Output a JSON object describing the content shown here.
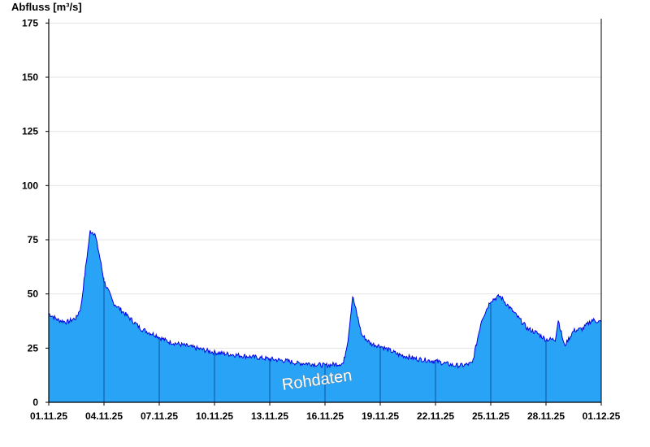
{
  "chart_data": {
    "type": "area",
    "ylabel": "Abfluss [m³/s]",
    "ylim": [
      0,
      177
    ],
    "yticks": [
      0,
      25,
      50,
      75,
      100,
      125,
      150,
      175
    ],
    "x_range": [
      "01.11.25",
      "01.12.25"
    ],
    "xticks": [
      "01.11.25",
      "04.11.25",
      "07.11.25",
      "10.11.25",
      "13.11.25",
      "16.11.25",
      "19.11.25",
      "22.11.25",
      "25.11.25",
      "28.11.25",
      "01.12.25"
    ],
    "watermark": "Rohdaten",
    "grid": true,
    "series": [
      {
        "fill_color": "#29a3f5",
        "line_color": "#0000e6",
        "x": [
          "01.11.25 00:00",
          "01.11.25 12:00",
          "02.11.25 00:00",
          "02.11.25 12:00",
          "02.11.25 18:00",
          "03.11.25 00:00",
          "03.11.25 06:00",
          "03.11.25 12:00",
          "03.11.25 18:00",
          "04.11.25 00:00",
          "04.11.25 12:00",
          "05.11.25 00:00",
          "05.11.25 12:00",
          "06.11.25 00:00",
          "06.11.25 12:00",
          "06.11.25 20:00",
          "07.11.25 00:00",
          "07.11.25 12:00",
          "08.11.25 00:00",
          "09.11.25 00:00",
          "10.11.25 00:00",
          "11.11.25 00:00",
          "12.11.25 00:00",
          "13.11.25 00:00",
          "14.11.25 00:00",
          "14.11.25 12:00",
          "15.11.25 00:00",
          "16.11.25 00:00",
          "17.11.25 00:00",
          "17.11.25 06:00",
          "17.11.25 12:00",
          "17.11.25 18:00",
          "18.11.25 00:00",
          "18.11.25 12:00",
          "19.11.25 00:00",
          "19.11.25 12:00",
          "20.11.25 00:00",
          "21.11.25 00:00",
          "22.11.25 00:00",
          "22.11.25 12:00",
          "23.11.25 00:00",
          "23.11.25 12:00",
          "24.11.25 00:00",
          "24.11.25 12:00",
          "25.11.25 00:00",
          "25.11.25 12:00",
          "26.11.25 00:00",
          "26.11.25 12:00",
          "27.11.25 00:00",
          "27.11.25 12:00",
          "28.11.25 00:00",
          "28.11.25 12:00",
          "28.11.25 16:00",
          "29.11.25 00:00",
          "29.11.25 12:00",
          "30.11.25 00:00",
          "30.11.25 12:00",
          "01.12.25 00:00"
        ],
        "values": [
          41,
          38,
          37,
          39,
          44,
          62,
          79,
          78,
          68,
          56,
          46,
          42,
          38,
          34,
          32,
          31,
          30,
          28,
          27,
          25,
          23,
          22,
          21,
          20,
          19,
          18,
          18,
          17,
          18,
          29,
          49,
          40,
          31,
          27,
          26,
          24,
          22,
          20,
          19,
          18,
          17,
          17,
          18,
          38,
          47,
          49,
          44,
          39,
          34,
          32,
          29,
          29,
          38,
          26,
          33,
          34,
          38,
          37
        ]
      }
    ]
  }
}
